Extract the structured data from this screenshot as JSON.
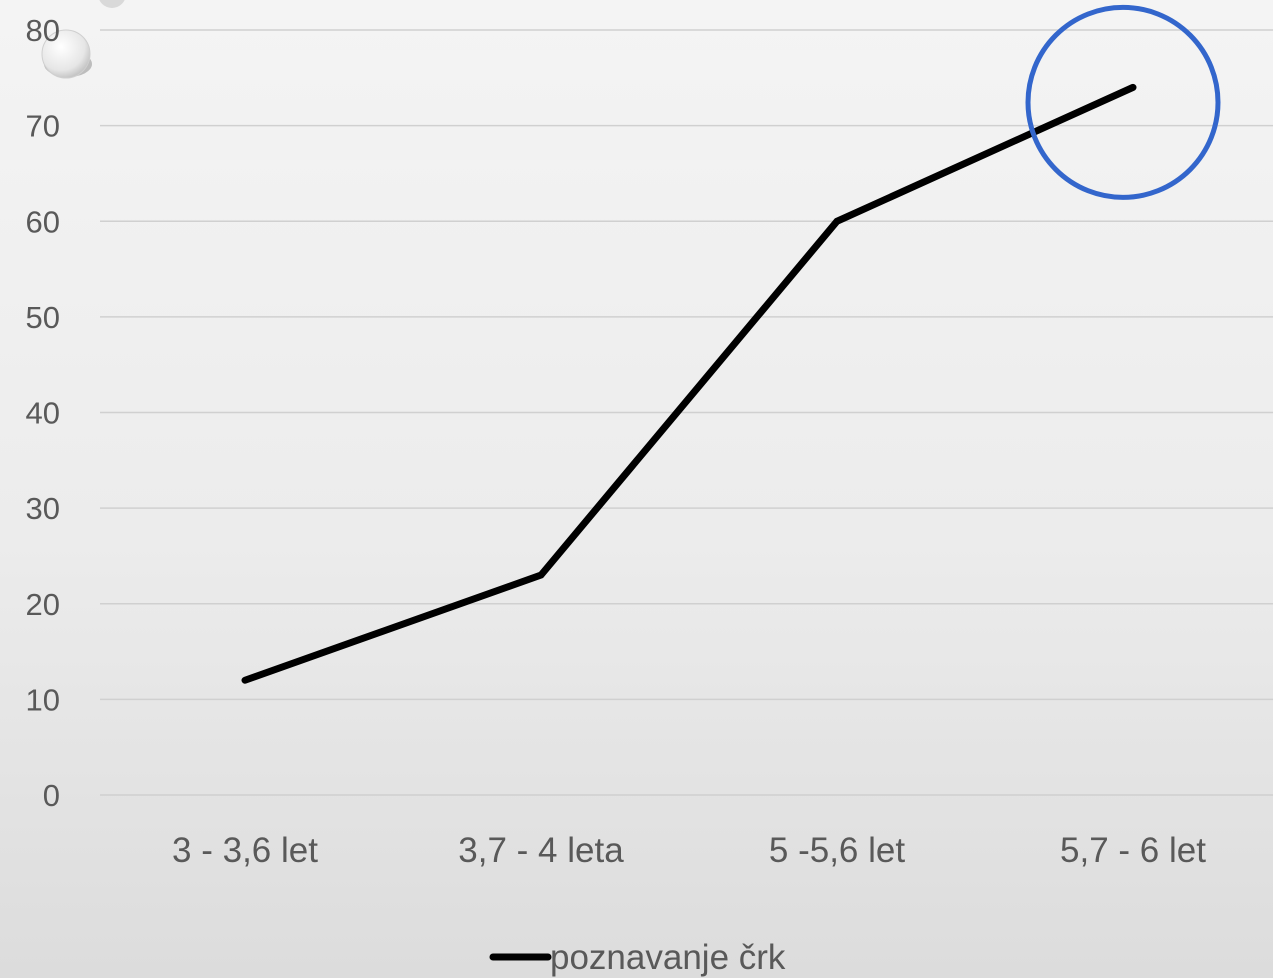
{
  "chart_data": {
    "type": "line",
    "categories": [
      "3 - 3,6 let",
      "3,7 - 4 leta",
      "5 -5,6 let",
      "5,7 - 6 let"
    ],
    "series": [
      {
        "name": "poznavanje črk",
        "values": [
          12,
          23,
          60,
          74
        ],
        "color": "#000000"
      }
    ],
    "y_ticks": [
      "0",
      "10",
      "20",
      "30",
      "40",
      "50",
      "60",
      "70",
      "80"
    ],
    "ylim": [
      0,
      80
    ],
    "grid": true,
    "legend": "bottom",
    "highlight": {
      "category": "5,7 - 6 let",
      "shape": "circle",
      "color": "#3366cc"
    },
    "title": "",
    "xlabel": "",
    "ylabel": ""
  }
}
